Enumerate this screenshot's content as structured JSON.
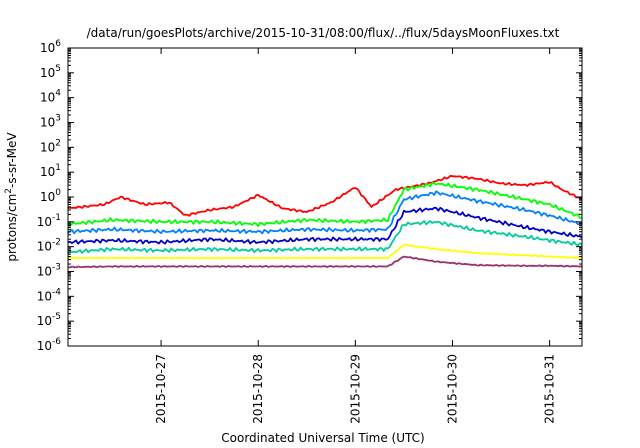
{
  "chart_data": {
    "type": "line",
    "title": "/data/run/goesPlots/archive/2015-10-31/08:00/flux/../flux/5daysMoonFluxes.txt",
    "xlabel": "Coordinated Universal Time (UTC)",
    "ylabel": "protons/cm²-s-sr-MeV",
    "y_scale": "log",
    "ylim": [
      1e-06,
      1000000.0
    ],
    "xlim": [
      "2015-10-26T01:00",
      "2015-10-31T08:00"
    ],
    "x_ticks": [
      "2015-10-27",
      "2015-10-28",
      "2015-10-29",
      "2015-10-30",
      "2015-10-31"
    ],
    "y_ticks": [
      "10-6",
      "10-5",
      "10-4",
      "10-3",
      "10-2",
      "10-1",
      "100",
      "101",
      "102",
      "103",
      "104",
      "105",
      "106"
    ],
    "grid": false,
    "legend": "none",
    "series": [
      {
        "color": "#ff0000",
        "points": [
          [
            "2015-10-26T01:00",
            0.35
          ],
          [
            "2015-10-26T10:00",
            0.5
          ],
          [
            "2015-10-26T14:00",
            1.0
          ],
          [
            "2015-10-26T20:00",
            0.5
          ],
          [
            "2015-10-27T02:00",
            0.6
          ],
          [
            "2015-10-27T06:00",
            0.18
          ],
          [
            "2015-10-27T12:00",
            0.3
          ],
          [
            "2015-10-27T18:00",
            0.4
          ],
          [
            "2015-10-28T00:00",
            1.2
          ],
          [
            "2015-10-28T06:00",
            0.35
          ],
          [
            "2015-10-28T12:00",
            0.25
          ],
          [
            "2015-10-28T18:00",
            0.6
          ],
          [
            "2015-10-29T00:00",
            2.5
          ],
          [
            "2015-10-29T04:00",
            0.4
          ],
          [
            "2015-10-29T10:00",
            2.0
          ],
          [
            "2015-10-29T18:00",
            3.5
          ],
          [
            "2015-10-30T00:00",
            7.0
          ],
          [
            "2015-10-30T06:00",
            5.5
          ],
          [
            "2015-10-30T12:00",
            3.5
          ],
          [
            "2015-10-30T18:00",
            3.0
          ],
          [
            "2015-10-31T00:00",
            4.0
          ],
          [
            "2015-10-31T03:00",
            2.0
          ],
          [
            "2015-10-31T08:00",
            0.8
          ]
        ]
      },
      {
        "color": "#00ff00",
        "points": [
          [
            "2015-10-26T01:00",
            0.08
          ],
          [
            "2015-10-26T12:00",
            0.12
          ],
          [
            "2015-10-27T00:00",
            0.1
          ],
          [
            "2015-10-27T12:00",
            0.1
          ],
          [
            "2015-10-28T00:00",
            0.08
          ],
          [
            "2015-10-28T12:00",
            0.12
          ],
          [
            "2015-10-29T00:00",
            0.1
          ],
          [
            "2015-10-29T08:00",
            0.12
          ],
          [
            "2015-10-29T12:00",
            2.0
          ],
          [
            "2015-10-29T20:00",
            3.5
          ],
          [
            "2015-10-30T06:00",
            2.0
          ],
          [
            "2015-10-30T18:00",
            0.8
          ],
          [
            "2015-10-31T00:00",
            0.5
          ],
          [
            "2015-10-31T08:00",
            0.15
          ]
        ]
      },
      {
        "color": "#0080ff",
        "points": [
          [
            "2015-10-26T01:00",
            0.04
          ],
          [
            "2015-10-26T12:00",
            0.05
          ],
          [
            "2015-10-27T00:00",
            0.04
          ],
          [
            "2015-10-27T12:00",
            0.045
          ],
          [
            "2015-10-28T00:00",
            0.04
          ],
          [
            "2015-10-28T12:00",
            0.05
          ],
          [
            "2015-10-29T00:00",
            0.045
          ],
          [
            "2015-10-29T08:00",
            0.05
          ],
          [
            "2015-10-29T12:00",
            0.8
          ],
          [
            "2015-10-29T20:00",
            1.5
          ],
          [
            "2015-10-30T06:00",
            0.7
          ],
          [
            "2015-10-30T18:00",
            0.3
          ],
          [
            "2015-10-31T00:00",
            0.18
          ],
          [
            "2015-10-31T08:00",
            0.08
          ]
        ]
      },
      {
        "color": "#0000cc",
        "points": [
          [
            "2015-10-26T01:00",
            0.015
          ],
          [
            "2015-10-26T12:00",
            0.018
          ],
          [
            "2015-10-27T00:00",
            0.015
          ],
          [
            "2015-10-27T12:00",
            0.02
          ],
          [
            "2015-10-28T00:00",
            0.015
          ],
          [
            "2015-10-28T12:00",
            0.02
          ],
          [
            "2015-10-29T00:00",
            0.02
          ],
          [
            "2015-10-29T08:00",
            0.02
          ],
          [
            "2015-10-29T12:00",
            0.25
          ],
          [
            "2015-10-29T20:00",
            0.35
          ],
          [
            "2015-10-30T06:00",
            0.15
          ],
          [
            "2015-10-30T18:00",
            0.06
          ],
          [
            "2015-10-31T00:00",
            0.04
          ],
          [
            "2015-10-31T08:00",
            0.025
          ]
        ]
      },
      {
        "color": "#00cc99",
        "points": [
          [
            "2015-10-26T01:00",
            0.006
          ],
          [
            "2015-10-26T12:00",
            0.008
          ],
          [
            "2015-10-27T00:00",
            0.007
          ],
          [
            "2015-10-27T12:00",
            0.008
          ],
          [
            "2015-10-28T00:00",
            0.007
          ],
          [
            "2015-10-28T12:00",
            0.008
          ],
          [
            "2015-10-29T00:00",
            0.008
          ],
          [
            "2015-10-29T08:00",
            0.008
          ],
          [
            "2015-10-29T12:00",
            0.08
          ],
          [
            "2015-10-29T20:00",
            0.1
          ],
          [
            "2015-10-30T06:00",
            0.045
          ],
          [
            "2015-10-30T18:00",
            0.025
          ],
          [
            "2015-10-31T00:00",
            0.018
          ],
          [
            "2015-10-31T08:00",
            0.012
          ]
        ]
      },
      {
        "color": "#ffff00",
        "points": [
          [
            "2015-10-26T01:00",
            0.0035
          ],
          [
            "2015-10-26T12:00",
            0.0035
          ],
          [
            "2015-10-27T00:00",
            0.0035
          ],
          [
            "2015-10-27T12:00",
            0.0035
          ],
          [
            "2015-10-28T00:00",
            0.0035
          ],
          [
            "2015-10-28T12:00",
            0.0035
          ],
          [
            "2015-10-29T00:00",
            0.0035
          ],
          [
            "2015-10-29T08:00",
            0.0035
          ],
          [
            "2015-10-29T12:00",
            0.012
          ],
          [
            "2015-10-29T20:00",
            0.008
          ],
          [
            "2015-10-30T06:00",
            0.0055
          ],
          [
            "2015-10-30T18:00",
            0.0045
          ],
          [
            "2015-10-31T00:00",
            0.004
          ],
          [
            "2015-10-31T08:00",
            0.0035
          ]
        ]
      },
      {
        "color": "#993366",
        "points": [
          [
            "2015-10-26T01:00",
            0.0015
          ],
          [
            "2015-10-26T12:00",
            0.0016
          ],
          [
            "2015-10-27T00:00",
            0.0016
          ],
          [
            "2015-10-27T12:00",
            0.0016
          ],
          [
            "2015-10-28T00:00",
            0.0016
          ],
          [
            "2015-10-28T12:00",
            0.0016
          ],
          [
            "2015-10-29T00:00",
            0.0016
          ],
          [
            "2015-10-29T08:00",
            0.0016
          ],
          [
            "2015-10-29T12:00",
            0.004
          ],
          [
            "2015-10-29T20:00",
            0.0025
          ],
          [
            "2015-10-30T06:00",
            0.0018
          ],
          [
            "2015-10-30T18:00",
            0.0017
          ],
          [
            "2015-10-31T00:00",
            0.0017
          ],
          [
            "2015-10-31T08:00",
            0.0016
          ]
        ]
      }
    ]
  }
}
